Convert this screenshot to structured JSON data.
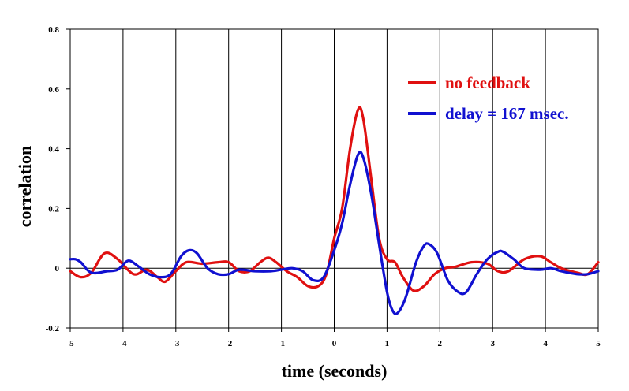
{
  "chart_data": {
    "type": "line",
    "xlabel": "time (seconds)",
    "ylabel": "correlation",
    "xlim": [
      -5,
      5
    ],
    "ylim": [
      -0.2,
      0.8
    ],
    "x_ticks": [
      -5,
      -4,
      -3,
      -2,
      -1,
      0,
      1,
      2,
      3,
      4,
      5
    ],
    "y_ticks": [
      -0.2,
      0,
      0.2,
      0.4,
      0.6,
      0.8
    ],
    "x_tick_labels": [
      "-5",
      "-4",
      "-3",
      "-2",
      "-1",
      "0",
      "1",
      "2",
      "3",
      "4",
      "5"
    ],
    "y_tick_labels": [
      "-0.2",
      "0",
      "0.2",
      "0.4",
      "0.6",
      "0.8"
    ],
    "grid": "vertical",
    "legend_position": "top-right",
    "series": [
      {
        "name": "no feedback",
        "color": "#e01010",
        "x": [
          -5,
          -4.8,
          -4.6,
          -4.35,
          -4.1,
          -3.8,
          -3.55,
          -3.35,
          -3.2,
          -3.0,
          -2.8,
          -2.5,
          -2.2,
          -2.0,
          -1.8,
          -1.6,
          -1.4,
          -1.25,
          -1.1,
          -0.9,
          -0.7,
          -0.5,
          -0.3,
          -0.15,
          0,
          0.15,
          0.3,
          0.45,
          0.55,
          0.7,
          0.85,
          1.0,
          1.15,
          1.3,
          1.5,
          1.7,
          1.9,
          2.1,
          2.3,
          2.6,
          2.9,
          3.1,
          3.3,
          3.6,
          3.9,
          4.1,
          4.3,
          4.6,
          4.8,
          5
        ],
        "y": [
          -0.01,
          -0.03,
          -0.015,
          0.05,
          0.03,
          -0.02,
          -0.005,
          -0.03,
          -0.045,
          -0.01,
          0.02,
          0.015,
          0.02,
          0.02,
          -0.01,
          -0.01,
          0.02,
          0.035,
          0.02,
          -0.01,
          -0.03,
          -0.06,
          -0.06,
          -0.02,
          0.1,
          0.2,
          0.4,
          0.53,
          0.5,
          0.3,
          0.1,
          0.03,
          0.02,
          -0.03,
          -0.075,
          -0.06,
          -0.02,
          0.0,
          0.005,
          0.02,
          0.015,
          -0.01,
          -0.01,
          0.03,
          0.04,
          0.02,
          0.0,
          -0.015,
          -0.02,
          0.02
        ]
      },
      {
        "name": "delay = 167 msec.",
        "color": "#1010d0",
        "x": [
          -5,
          -4.9,
          -4.8,
          -4.6,
          -4.3,
          -4.1,
          -3.9,
          -3.7,
          -3.5,
          -3.3,
          -3.1,
          -2.9,
          -2.75,
          -2.6,
          -2.4,
          -2.2,
          -2.0,
          -1.8,
          -1.5,
          -1.2,
          -1.0,
          -0.8,
          -0.6,
          -0.4,
          -0.2,
          0,
          0.15,
          0.3,
          0.45,
          0.55,
          0.7,
          0.85,
          1.0,
          1.1,
          1.2,
          1.35,
          1.55,
          1.7,
          1.8,
          1.95,
          2.15,
          2.35,
          2.5,
          2.7,
          2.9,
          3.1,
          3.2,
          3.4,
          3.6,
          3.9,
          4.1,
          4.3,
          4.6,
          4.8,
          5
        ],
        "y": [
          0.03,
          0.03,
          0.02,
          -0.015,
          -0.01,
          -0.005,
          0.025,
          0.005,
          -0.02,
          -0.03,
          -0.02,
          0.04,
          0.06,
          0.05,
          0.0,
          -0.02,
          -0.02,
          -0.005,
          -0.01,
          -0.01,
          -0.005,
          0.0,
          -0.01,
          -0.04,
          -0.03,
          0.06,
          0.15,
          0.28,
          0.38,
          0.37,
          0.25,
          0.08,
          -0.08,
          -0.14,
          -0.15,
          -0.1,
          0.02,
          0.075,
          0.08,
          0.05,
          -0.04,
          -0.08,
          -0.08,
          -0.02,
          0.03,
          0.055,
          0.055,
          0.03,
          0.0,
          -0.005,
          0.0,
          -0.01,
          -0.02,
          -0.02,
          -0.01
        ]
      }
    ]
  }
}
